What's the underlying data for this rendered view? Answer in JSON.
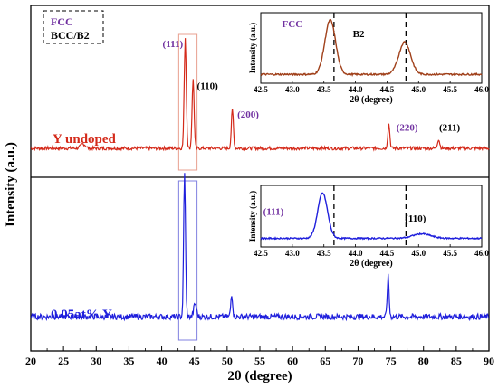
{
  "chart_data": {
    "type": "line",
    "x_axis": {
      "label": "2θ (degree)",
      "range": [
        20,
        90
      ],
      "ticks": [
        20,
        25,
        30,
        35,
        40,
        45,
        50,
        55,
        60,
        65,
        70,
        75,
        80,
        85,
        90
      ]
    },
    "y_axis": {
      "label": "Intensity (a.u.)"
    },
    "legend": {
      "placement": "top-left",
      "entries": [
        {
          "label": "FCC",
          "color": "#7030a0"
        },
        {
          "label": "BCC/B2",
          "color": "#000000"
        }
      ]
    },
    "panels": [
      {
        "name": "Y undoped",
        "color": "#d42a1a",
        "baseline": 0.05,
        "noise": 0.015,
        "peaks": [
          {
            "x": 43.6,
            "h": 1.0,
            "w": 0.22
          },
          {
            "x": 44.8,
            "h": 0.62,
            "w": 0.22
          },
          {
            "x": 50.8,
            "h": 0.35,
            "w": 0.22
          },
          {
            "x": 74.7,
            "h": 0.22,
            "w": 0.22
          },
          {
            "x": 82.3,
            "h": 0.08,
            "w": 0.25
          },
          {
            "x": 28.0,
            "h": 0.04,
            "w": 0.5
          }
        ],
        "labels": [
          {
            "text": "(111)",
            "x": 41.7,
            "y": 1.0,
            "color": "#7030a0"
          },
          {
            "text": "(110)",
            "x": 47.0,
            "y": 0.62,
            "color": "#000000"
          },
          {
            "text": "(200)",
            "x": 53.2,
            "y": 0.36,
            "color": "#7030a0"
          },
          {
            "text": "(220)",
            "x": 77.5,
            "y": 0.24,
            "color": "#7030a0"
          },
          {
            "text": "(211)",
            "x": 84.0,
            "y": 0.24,
            "color": "#000000"
          }
        ],
        "highlight_box": [
          42.6,
          45.4
        ]
      },
      {
        "name": "0.05at% Y",
        "color": "#1f1fdc",
        "baseline": 0.05,
        "noise": 0.02,
        "peaks": [
          {
            "x": 43.5,
            "h": 1.0,
            "w": 0.2
          },
          {
            "x": 45.1,
            "h": 0.09,
            "w": 0.3
          },
          {
            "x": 50.7,
            "h": 0.16,
            "w": 0.2
          },
          {
            "x": 74.6,
            "h": 0.28,
            "w": 0.2
          }
        ],
        "highlight_box": [
          42.6,
          45.4
        ]
      }
    ],
    "insets": [
      {
        "panel": 0,
        "xlim": [
          42.5,
          46.0
        ],
        "xticks": [
          "42.5",
          "43.0",
          "43.5",
          "44.0",
          "44.5",
          "45.0",
          "45.5",
          "46.0"
        ],
        "xlabel": "2θ (degree)",
        "ylabel": "Intensity (a.u.)",
        "color": "#a0401a",
        "peaks": [
          {
            "x": 43.6,
            "h": 1.0,
            "w": 0.12
          },
          {
            "x": 44.78,
            "h": 0.6,
            "w": 0.13
          }
        ],
        "dashed_x": [
          43.66,
          44.8
        ],
        "labels": [
          {
            "text": "FCC",
            "x": 43.0,
            "y": 0.9,
            "color": "#7030a0"
          },
          {
            "text": "B2",
            "x": 44.05,
            "y": 0.72,
            "color": "#000000"
          }
        ]
      },
      {
        "panel": 1,
        "xlim": [
          42.5,
          46.0
        ],
        "xticks": [
          "42.5",
          "43.0",
          "43.5",
          "44.0",
          "44.5",
          "45.0",
          "45.5",
          "46.0"
        ],
        "xlabel": "2θ (degree)",
        "ylabel": "Intensity (a.u.)",
        "color": "#1f1fdc",
        "peaks": [
          {
            "x": 43.48,
            "h": 1.0,
            "w": 0.11
          },
          {
            "x": 45.05,
            "h": 0.1,
            "w": 0.2
          }
        ],
        "dashed_x": [
          43.66,
          44.8
        ],
        "labels": [
          {
            "text": "(111)",
            "x": 42.7,
            "y": 0.55,
            "color": "#7030a0"
          },
          {
            "text": "(110)",
            "x": 44.95,
            "y": 0.4,
            "color": "#000000"
          }
        ]
      }
    ]
  }
}
